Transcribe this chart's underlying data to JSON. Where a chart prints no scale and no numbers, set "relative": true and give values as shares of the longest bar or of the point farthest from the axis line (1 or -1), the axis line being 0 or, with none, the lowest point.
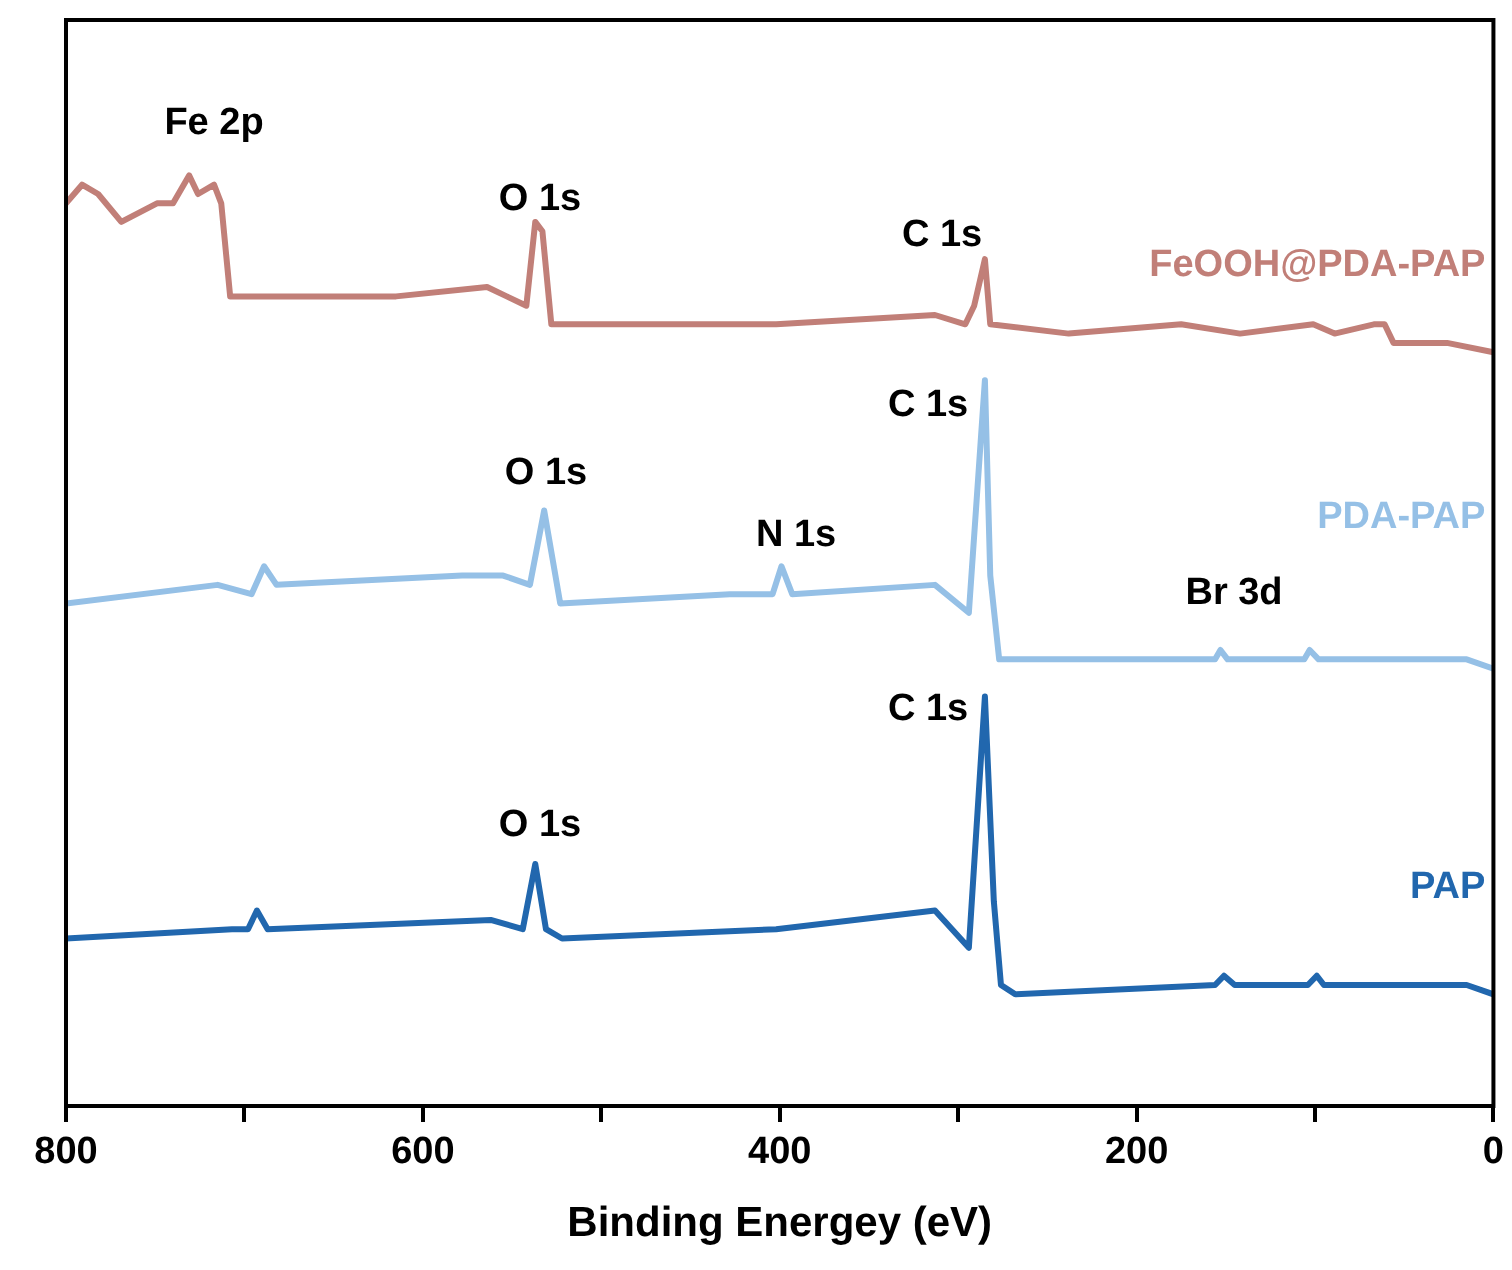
{
  "chart_data": {
    "type": "line",
    "xlabel": "Binding Energey (eV)",
    "relative": true,
    "xlim": [
      800,
      0
    ],
    "xticks": [
      800,
      {
        "value": 700,
        "label": null
      },
      600,
      {
        "value": 500,
        "label": null
      },
      400,
      {
        "value": 300,
        "label": null
      },
      200,
      {
        "value": 100,
        "label": null
      },
      0
    ],
    "grid": false,
    "legend": false,
    "marker": "none",
    "line_style": "solid",
    "series": [
      {
        "name": "FeOOH@PDA-PAP",
        "color": "#c17f78",
        "x": [
          800,
          791,
          782,
          769,
          749,
          740,
          731,
          726,
          717,
          713,
          708,
          670,
          615,
          564,
          553,
          542,
          537,
          533,
          528,
          480,
          402,
          313,
          296,
          291,
          285,
          282,
          238,
          175,
          142,
          101,
          89,
          67,
          61,
          56,
          26,
          0
        ],
        "values": [
          0.97,
          0.99,
          0.98,
          0.95,
          0.97,
          0.97,
          1,
          0.98,
          0.99,
          0.97,
          0.87,
          0.87,
          0.87,
          0.88,
          0.87,
          0.86,
          0.95,
          0.94,
          0.84,
          0.84,
          0.84,
          0.85,
          0.84,
          0.86,
          0.91,
          0.84,
          0.83,
          0.84,
          0.83,
          0.84,
          0.83,
          0.84,
          0.84,
          0.82,
          0.82,
          0.81
        ]
      },
      {
        "name": "PDA-PAP",
        "color": "#95c0e6",
        "x": [
          800,
          715,
          696,
          689,
          682,
          578,
          555,
          540,
          532,
          523,
          428,
          404,
          399,
          393,
          313,
          294,
          285,
          282,
          277,
          238,
          156,
          153,
          149,
          106,
          103,
          98,
          15,
          0
        ],
        "values": [
          0.54,
          0.56,
          0.55,
          0.58,
          0.56,
          0.57,
          0.57,
          0.56,
          0.64,
          0.54,
          0.55,
          0.55,
          0.58,
          0.55,
          0.56,
          0.53,
          0.78,
          0.57,
          0.48,
          0.48,
          0.48,
          0.49,
          0.48,
          0.48,
          0.49,
          0.48,
          0.48,
          0.47
        ]
      },
      {
        "name": "PAP",
        "color": "#2167ae",
        "x": [
          800,
          707,
          698,
          693,
          687,
          562,
          544,
          537,
          531,
          522,
          402,
          313,
          294,
          285,
          280,
          276,
          268,
          156,
          151,
          145,
          104,
          99,
          95,
          15,
          0
        ],
        "values": [
          0.18,
          0.19,
          0.19,
          0.21,
          0.19,
          0.2,
          0.19,
          0.26,
          0.19,
          0.18,
          0.19,
          0.21,
          0.17,
          0.44,
          0.22,
          0.13,
          0.12,
          0.13,
          0.14,
          0.13,
          0.13,
          0.14,
          0.13,
          0.13,
          0.12
        ]
      }
    ],
    "annotations": [
      "Fe 2p",
      "O 1s",
      "C 1s",
      "O 1s",
      "N 1s",
      "C 1s",
      "Br 3d",
      "O 1s",
      "C 1s"
    ]
  }
}
